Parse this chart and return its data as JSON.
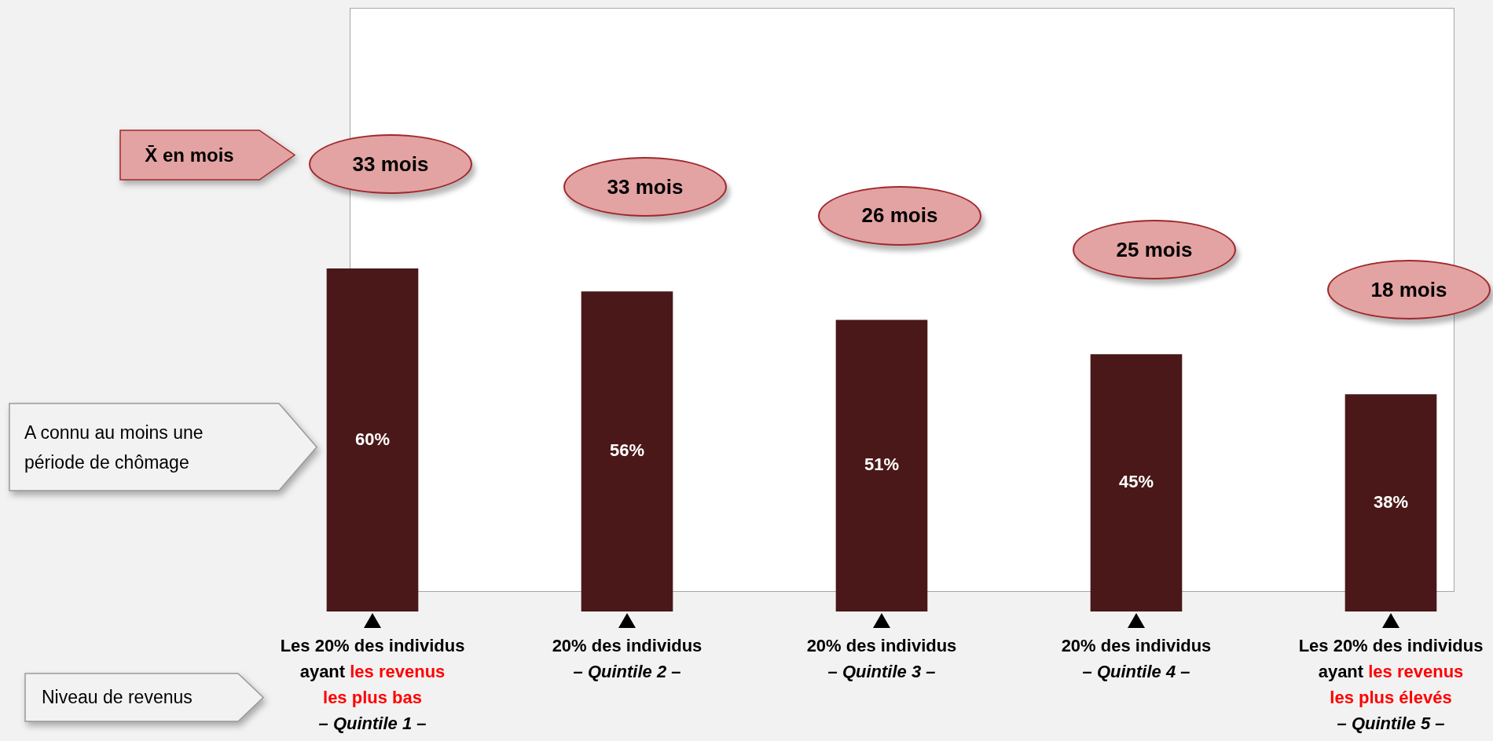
{
  "chart_data": {
    "type": "bar",
    "xlabel": "Niveau de revenus",
    "ylabel": "A connu au moins une période de chômage",
    "categories": [
      "Les 20% des individus\nayant les revenus\nles plus bas\n– Quintile 1 –",
      "20% des individus\n– Quintile 2 –",
      "20% des individus\n– Quintile 3 –",
      "20% des individus\n– Quintile 4 –",
      "Les 20% des individus\nayant les revenus\nles plus élevés\n– Quintile 5 –"
    ],
    "values": [
      60,
      56,
      51,
      45,
      38
    ],
    "color": "#4a1818",
    "value_labels": [
      "60%",
      "56%",
      "51%",
      "45%",
      "38%"
    ],
    "tick_labels": "x",
    "annotations": [
      "X̄ en mois",
      "33 mois",
      "33 mois",
      "26 mois",
      "25 mois",
      "18 mois"
    ]
  }
}
